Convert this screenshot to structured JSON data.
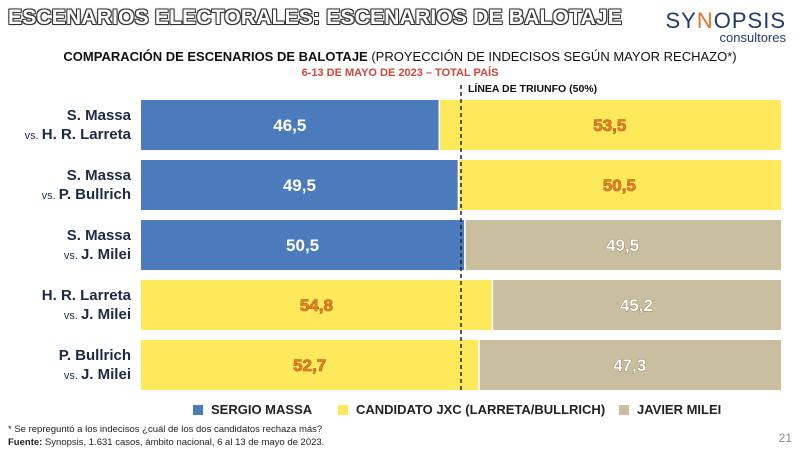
{
  "header": {
    "title": "ESCENARIOS ELECTORALES: ESCENARIOS DE BALOTAJE",
    "logo_main_pre": "SY",
    "logo_main_accent": "N",
    "logo_main_post": "OPSIS",
    "logo_sub": "consultores"
  },
  "colors": {
    "massa": "#4b7bbd",
    "jxc": "#fde95a",
    "milei": "#c9bf9e",
    "massa_text": "#ffffff",
    "jxc_text": "#f07a1e",
    "milei_text": "#ffffff"
  },
  "chart_data": {
    "type": "bar",
    "orientation": "horizontal-stacked-100",
    "title_bold": "COMPARACIÓN DE ESCENARIOS DE BALOTAJE",
    "title_rest": " (PROYECCIÓN DE INDECISOS SEGÚN MAYOR RECHAZO*)",
    "subtitle": "6-13 DE MAYO DE 2023 – TOTAL PAÍS",
    "threshold_label": "LÍNEA DE TRIUNFO (50%)",
    "threshold": 50,
    "xlim": [
      0,
      100
    ],
    "categories": [
      [
        "S. Massa",
        "vs. H. R. Larreta"
      ],
      [
        "S. Massa",
        "vs. P. Bullrich"
      ],
      [
        "S. Massa",
        "vs. J. Milei"
      ],
      [
        "H. R. Larreta",
        "vs. J. Milei"
      ],
      [
        "P. Bullrich",
        "vs. J. Milei"
      ]
    ],
    "rows": [
      {
        "left": {
          "series": "massa",
          "value": 46.5,
          "label": "46,5"
        },
        "right": {
          "series": "jxc",
          "value": 53.5,
          "label": "53,5"
        }
      },
      {
        "left": {
          "series": "massa",
          "value": 49.5,
          "label": "49,5"
        },
        "right": {
          "series": "jxc",
          "value": 50.5,
          "label": "50,5"
        }
      },
      {
        "left": {
          "series": "massa",
          "value": 50.5,
          "label": "50,5"
        },
        "right": {
          "series": "milei",
          "value": 49.5,
          "label": "49,5"
        }
      },
      {
        "left": {
          "series": "jxc",
          "value": 54.8,
          "label": "54,8"
        },
        "right": {
          "series": "milei",
          "value": 45.2,
          "label": "45,2"
        }
      },
      {
        "left": {
          "series": "jxc",
          "value": 52.7,
          "label": "52,7"
        },
        "right": {
          "series": "milei",
          "value": 47.3,
          "label": "47,3"
        }
      }
    ],
    "legend": [
      {
        "key": "massa",
        "label": "SERGIO MASSA"
      },
      {
        "key": "jxc",
        "label": "CANDIDATO JXC (LARRETA/BULLRICH)"
      },
      {
        "key": "milei",
        "label": "JAVIER MILEI"
      }
    ]
  },
  "footnote": "* Se repreguntó a los indecisos ¿cuál de los dos candidatos rechaza más?",
  "source_label": "Fuente:",
  "source_text": " Synopsis, 1.631 casos, ámbito nacional, 6 al 13 de mayo de 2023.",
  "page_number": "21"
}
